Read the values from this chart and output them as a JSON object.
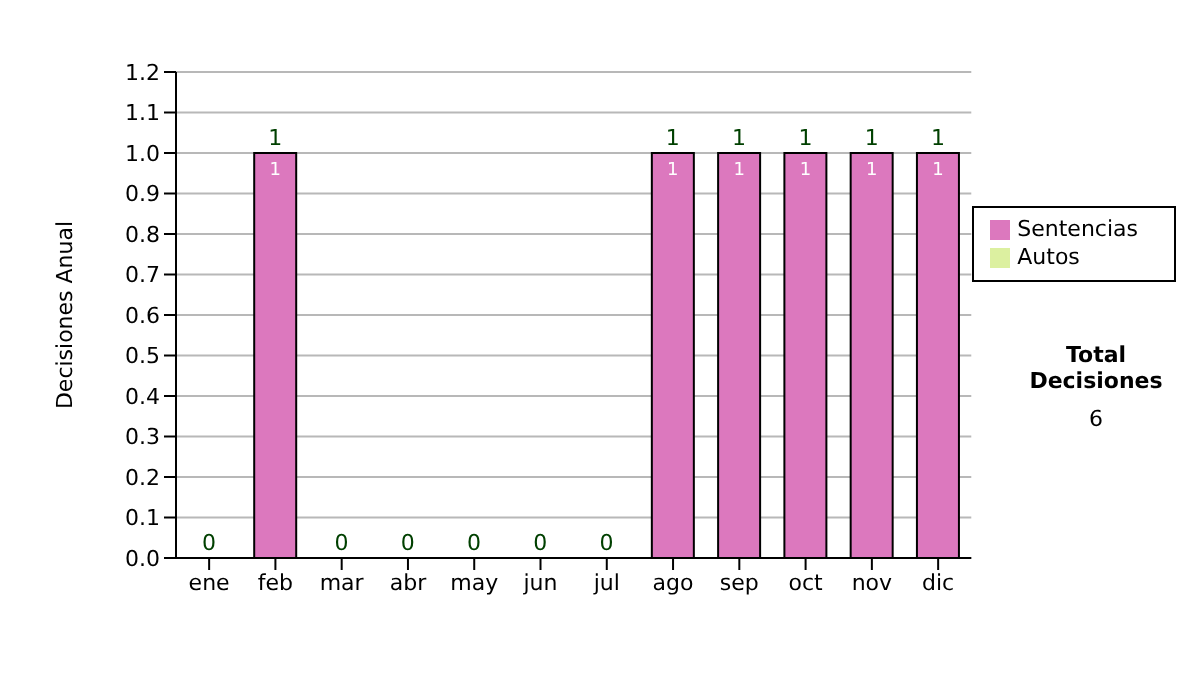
{
  "chart_data": {
    "type": "bar",
    "stacked": true,
    "categories": [
      "ene",
      "feb",
      "mar",
      "abr",
      "may",
      "jun",
      "jul",
      "ago",
      "sep",
      "oct",
      "nov",
      "dic"
    ],
    "series": [
      {
        "name": "Sentencias",
        "color": "#dc78be",
        "values": [
          0,
          1,
          0,
          0,
          0,
          0,
          0,
          1,
          1,
          1,
          1,
          1
        ],
        "value_labels": [
          null,
          "1",
          null,
          null,
          null,
          null,
          null,
          "1",
          "1",
          "1",
          "1",
          "1"
        ]
      },
      {
        "name": "Autos",
        "color": "#dcf0a0",
        "values": [
          0,
          0,
          0,
          0,
          0,
          0,
          0,
          0,
          0,
          0,
          0,
          0
        ]
      }
    ],
    "totals": [
      "0",
      "1",
      "0",
      "0",
      "0",
      "0",
      "0",
      "1",
      "1",
      "1",
      "1",
      "1"
    ],
    "ylabel": "Decisiones Anual",
    "ylim": [
      0,
      1.2
    ],
    "yticks": [
      {
        "value": 0,
        "label": "0.0"
      },
      0.1,
      0.2,
      0.3,
      0.4,
      0.5,
      0.6,
      0.7,
      0.8,
      0.9,
      {
        "value": 1,
        "label": "1.0"
      },
      1.1,
      1.2
    ],
    "grid": "y",
    "legend": "right",
    "annotations": [
      "Total Decisiones",
      "6"
    ]
  }
}
